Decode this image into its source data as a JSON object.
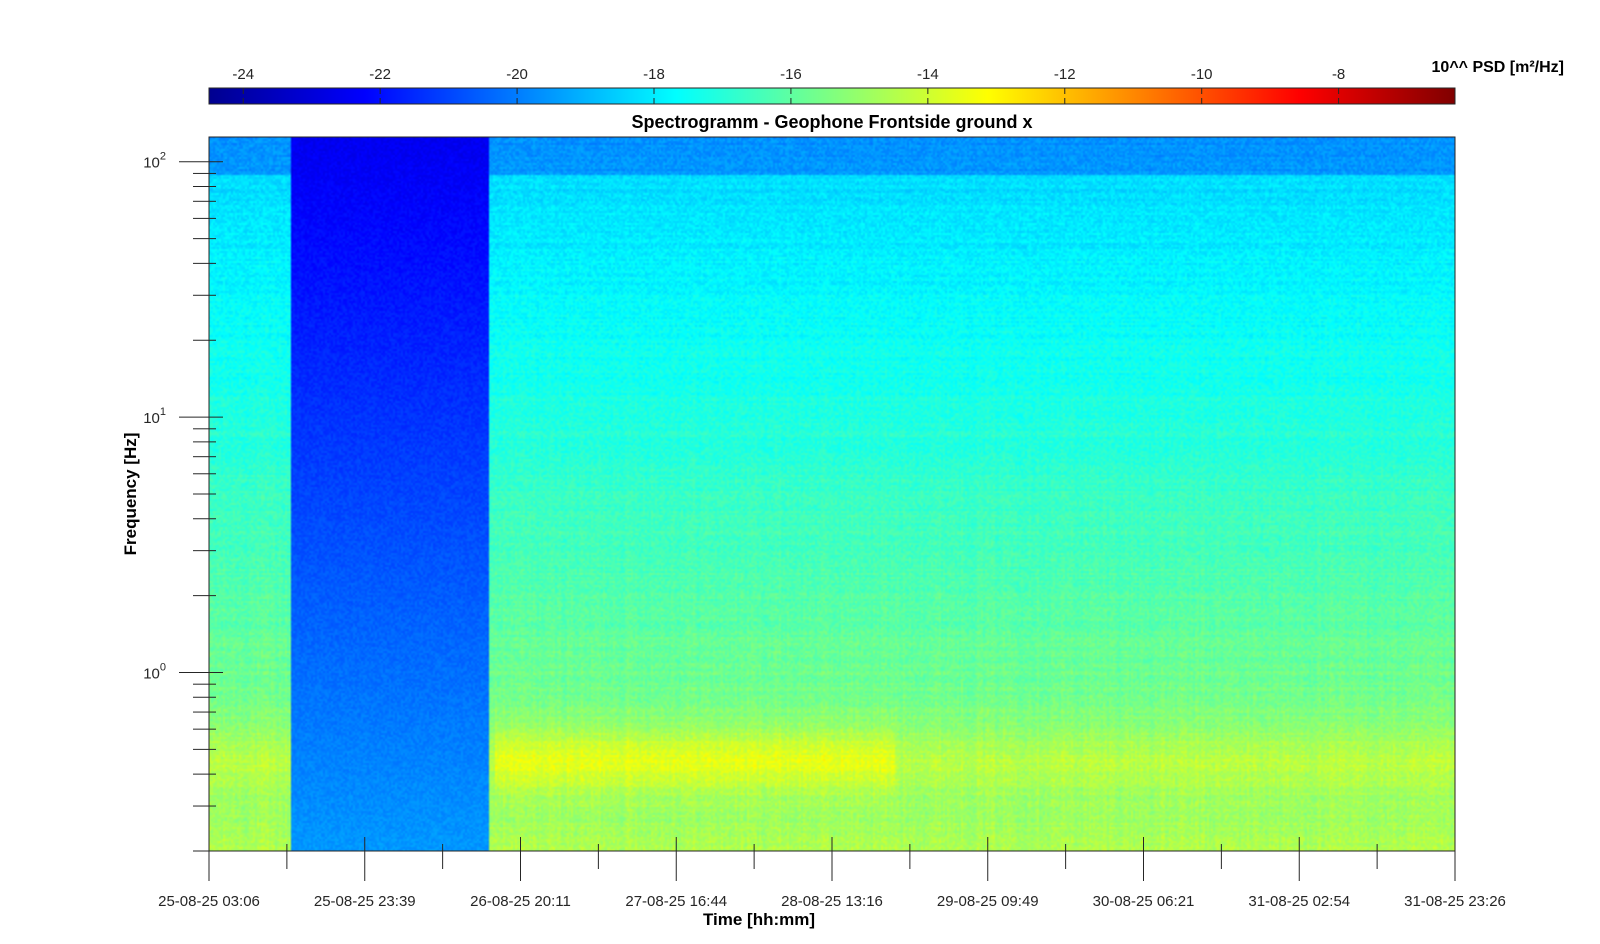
{
  "chart_data": {
    "type": "heatmap",
    "title": "Spectrogramm - Geophone Frontside ground x",
    "xlabel": "Time [hh:mm]",
    "ylabel": "Frequency [Hz]",
    "x_tick_labels": [
      "25-08-25 03:06",
      "25-08-25 23:39",
      "26-08-25 20:11",
      "27-08-25 16:44",
      "28-08-25 13:16",
      "29-08-25 09:49",
      "30-08-25 06:21",
      "31-08-25 02:54",
      "31-08-25 23:26"
    ],
    "xlim": [
      "25-08-25 03:06",
      "31-08-25 23:26"
    ],
    "y_scale": "log",
    "y_ticks": [
      {
        "base": "10",
        "exp": "0",
        "value": 1
      },
      {
        "base": "10",
        "exp": "1",
        "value": 10
      },
      {
        "base": "10",
        "exp": "2",
        "value": 100
      }
    ],
    "ylim": [
      0.2,
      125
    ],
    "colorbar": {
      "label": "10^^ PSD [m²/Hz]",
      "ticks": [
        "-24",
        "-22",
        "-20",
        "-18",
        "-16",
        "-14",
        "-12",
        "-10",
        "-8"
      ],
      "range": [
        -24.5,
        -6.3
      ],
      "colormap": "jet",
      "location": "top"
    },
    "data_gap": {
      "start": "25-08-25 14:00",
      "end": "26-08-25 16:00",
      "level_log10_psd": -22.5
    },
    "features": {
      "background_high_freq_log10_psd": -18.5,
      "background_mid_freq_log10_psd": -17,
      "background_low_freq_log10_psd": -14.5,
      "microseism_band_hz": [
        0.35,
        0.6
      ],
      "microseism_peak_log10_psd": -13
    },
    "colors": {
      "axis": "#262626",
      "jet_stops": [
        "#00008f",
        "#0000ff",
        "#00ffff",
        "#ffff00",
        "#ff0000",
        "#800000"
      ]
    }
  }
}
